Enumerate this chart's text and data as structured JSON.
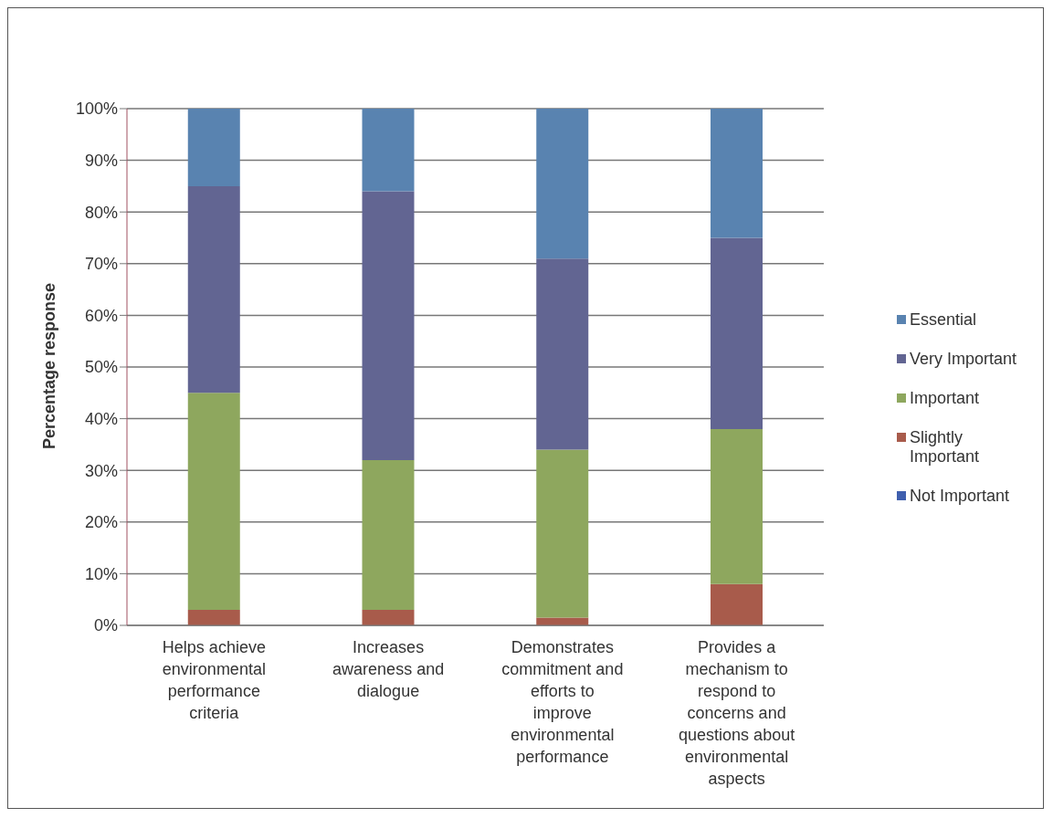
{
  "chart_data": {
    "type": "bar",
    "stacked": true,
    "ylabel": "Percentage response",
    "categories": [
      "Helps achieve environmental performance criteria",
      "Increases awareness and dialogue",
      "Demonstrates commitment and efforts to improve environmental performance",
      "Provides a mechanism to respond to concerns and questions about environmental aspects"
    ],
    "series": [
      {
        "name": "Not Important",
        "color": "#3f5fae",
        "values": [
          0,
          0,
          0,
          0
        ]
      },
      {
        "name": "Slightly Important",
        "color": "#a85b4b",
        "values": [
          3,
          3,
          1.5,
          8
        ]
      },
      {
        "name": "Important",
        "color": "#8ea75e",
        "values": [
          42,
          29,
          32.5,
          30
        ]
      },
      {
        "name": "Very Important",
        "color": "#626592",
        "values": [
          40,
          52,
          37,
          37
        ]
      },
      {
        "name": "Essential",
        "color": "#5983b0",
        "values": [
          15,
          16,
          29,
          25
        ]
      }
    ],
    "ylim": [
      0,
      100
    ],
    "yticks": [
      {
        "value": 0,
        "label": "0%"
      },
      {
        "value": 10,
        "label": "10%"
      },
      {
        "value": 20,
        "label": "20%"
      },
      {
        "value": 30,
        "label": "30%"
      },
      {
        "value": 40,
        "label": "40%"
      },
      {
        "value": 50,
        "label": "50%"
      },
      {
        "value": 60,
        "label": "60%"
      },
      {
        "value": 70,
        "label": "70%"
      },
      {
        "value": 80,
        "label": "80%"
      },
      {
        "value": 90,
        "label": "90%"
      },
      {
        "value": 100,
        "label": "100%"
      }
    ],
    "grid": "y",
    "legend": "right"
  }
}
